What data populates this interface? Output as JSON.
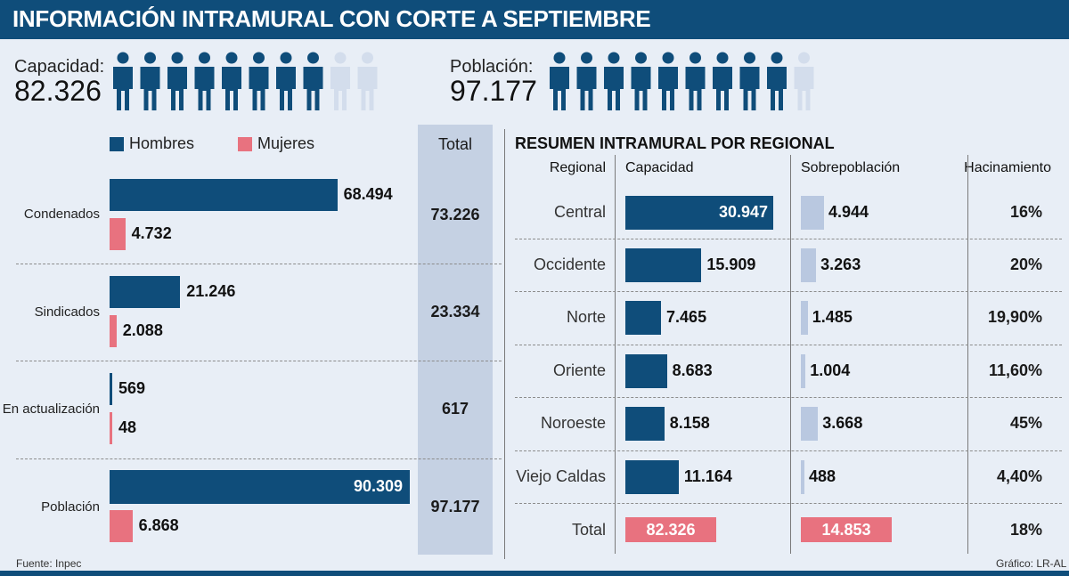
{
  "title": "INFORMACIÓN INTRAMURAL CON CORTE A SEPTIEMBRE",
  "capacidad": {
    "label": "Capacidad:",
    "value": "82.326",
    "filled": 8,
    "total": 10
  },
  "poblacion": {
    "label": "Población:",
    "value": "97.177",
    "filled": 9,
    "total": 10
  },
  "colors": {
    "navy": "#0f4d7a",
    "pink": "#e8727f",
    "light": "#b9c8e0",
    "figure_light": "#d3ddec"
  },
  "footer": {
    "source": "Fuente: Inpec",
    "credit": "Gráfico: LR-AL"
  },
  "chart_data": [
    {
      "type": "bar",
      "orientation": "horizontal",
      "categories": [
        "Condenados",
        "Sindicados",
        "En actualización",
        "Población"
      ],
      "series": [
        {
          "name": "Hombres",
          "values": [
            68494,
            21246,
            569,
            90309
          ],
          "labels": [
            "68.494",
            "21.246",
            "569",
            "90.309"
          ]
        },
        {
          "name": "Mujeres",
          "values": [
            4732,
            2088,
            48,
            6868
          ],
          "labels": [
            "4.732",
            "2.088",
            "48",
            "6.868"
          ]
        }
      ],
      "total_header": "Total",
      "totals": [
        "73.226",
        "23.334",
        "617",
        "97.177"
      ]
    },
    {
      "type": "table",
      "title": "RESUMEN INTRAMURAL POR REGIONAL",
      "columns": [
        "Regional",
        "Capacidad",
        "Sobrepoblación",
        "Hacinamiento"
      ],
      "rows": [
        {
          "regional": "Central",
          "capacidad": 30947,
          "capacidad_label": "30.947",
          "sobrepoblacion": 4944,
          "sobrepoblacion_label": "4.944",
          "hacinamiento": "16%"
        },
        {
          "regional": "Occidente",
          "capacidad": 15909,
          "capacidad_label": "15.909",
          "sobrepoblacion": 3263,
          "sobrepoblacion_label": "3.263",
          "hacinamiento": "20%"
        },
        {
          "regional": "Norte",
          "capacidad": 7465,
          "capacidad_label": "7.465",
          "sobrepoblacion": 1485,
          "sobrepoblacion_label": "1.485",
          "hacinamiento": "19,90%"
        },
        {
          "regional": "Oriente",
          "capacidad": 8683,
          "capacidad_label": "8.683",
          "sobrepoblacion": 1004,
          "sobrepoblacion_label": "1.004",
          "hacinamiento": "11,60%"
        },
        {
          "regional": "Noroeste",
          "capacidad": 8158,
          "capacidad_label": "8.158",
          "sobrepoblacion": 3668,
          "sobrepoblacion_label": "3.668",
          "hacinamiento": "45%"
        },
        {
          "regional": "Viejo Caldas",
          "capacidad": 11164,
          "capacidad_label": "11.164",
          "sobrepoblacion": 488,
          "sobrepoblacion_label": "488",
          "hacinamiento": "4,40%"
        }
      ],
      "total": {
        "regional": "Total",
        "capacidad_label": "82.326",
        "sobrepoblacion_label": "14.853",
        "hacinamiento": "18%"
      }
    }
  ]
}
